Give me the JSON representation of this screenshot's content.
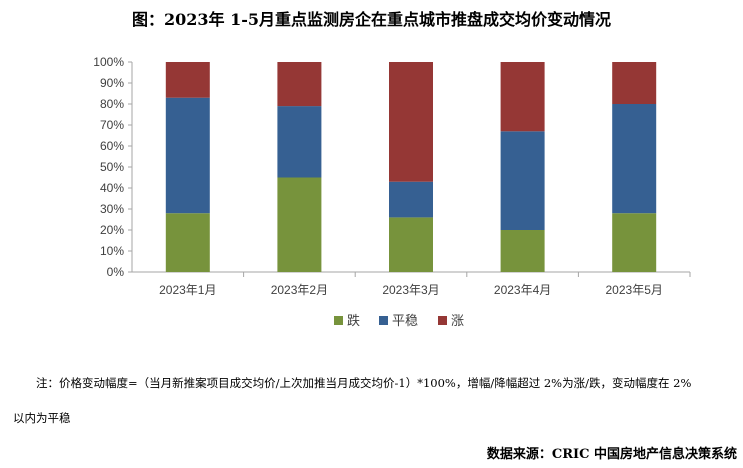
{
  "title": "图：2023年 1-5月重点监测房企在重点城市推盘成交均价变动情况",
  "chart_data": {
    "type": "stacked-bar-100",
    "categories": [
      "2023年1月",
      "2023年2月",
      "2023年3月",
      "2023年4月",
      "2023年5月"
    ],
    "series": [
      {
        "name": "跌",
        "color": "#77933c",
        "values": [
          28,
          45,
          26,
          20,
          28
        ]
      },
      {
        "name": "平稳",
        "color": "#366092",
        "values": [
          55,
          34,
          17,
          47,
          52
        ]
      },
      {
        "name": "涨",
        "color": "#953735",
        "values": [
          17,
          21,
          57,
          33,
          20
        ]
      }
    ],
    "y_ticks": [
      "0%",
      "10%",
      "20%",
      "30%",
      "40%",
      "50%",
      "60%",
      "70%",
      "80%",
      "90%",
      "100%"
    ],
    "ylim": [
      0,
      100
    ],
    "legend_position": "bottom"
  },
  "note_line1": "注：价格变动幅度=（当月新推案项目成交均价/上次加推当月成交均价-1）*100%，增幅/降幅超过 2%为涨/跌，变动幅度在 2%",
  "note_line2": "以内为平稳",
  "source": "数据来源：CRIC 中国房地产信息决策系统"
}
